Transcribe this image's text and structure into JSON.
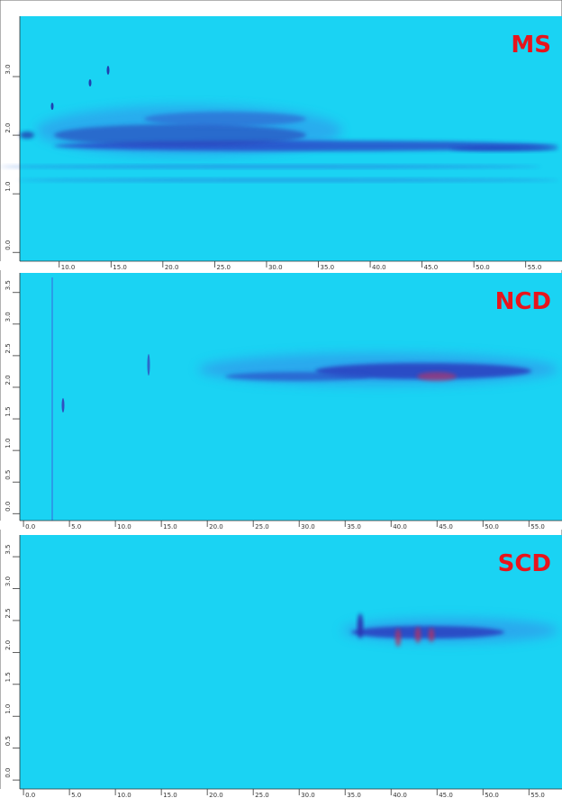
{
  "chart_data": [
    {
      "type": "heatmap",
      "title": "MS",
      "xlim": [
        6.2,
        58.5
      ],
      "xticks": [
        {
          "value": 10,
          "label": "10.0"
        },
        {
          "value": 15,
          "label": "15.0"
        },
        {
          "value": 20,
          "label": "20.0"
        },
        {
          "value": 25,
          "label": "25.0"
        },
        {
          "value": 30,
          "label": "30.0"
        },
        {
          "value": 35,
          "label": "35.0"
        },
        {
          "value": 40,
          "label": "40.0"
        },
        {
          "value": 45,
          "label": "45.0"
        },
        {
          "value": 50,
          "label": "50.0"
        },
        {
          "value": 55,
          "label": "55.0"
        }
      ],
      "ylim": [
        -0.15,
        4.03
      ],
      "yticks": [
        {
          "value": 0,
          "label": "0.0"
        },
        {
          "value": 1,
          "label": "1.0"
        },
        {
          "value": 2,
          "label": "2.0"
        },
        {
          "value": 3,
          "label": "3.0"
        }
      ]
    },
    {
      "type": "heatmap",
      "title": "NCD",
      "xlim": [
        -0.4,
        58.6
      ],
      "xticks": [
        {
          "value": 0,
          "label": "0.0"
        },
        {
          "value": 5,
          "label": "5.0"
        },
        {
          "value": 10,
          "label": "10.0"
        },
        {
          "value": 15,
          "label": "15.0"
        },
        {
          "value": 20,
          "label": "20.0"
        },
        {
          "value": 25,
          "label": "25.0"
        },
        {
          "value": 30,
          "label": "30.0"
        },
        {
          "value": 35,
          "label": "35.0"
        },
        {
          "value": 40,
          "label": "40.0"
        },
        {
          "value": 45,
          "label": "45.0"
        },
        {
          "value": 50,
          "label": "50.0"
        },
        {
          "value": 55,
          "label": "55.0"
        }
      ],
      "ylim": [
        -0.11,
        3.81
      ],
      "yticks": [
        {
          "value": 0,
          "label": "0.0"
        },
        {
          "value": 0.5,
          "label": "0.5"
        },
        {
          "value": 1,
          "label": "1.0"
        },
        {
          "value": 1.5,
          "label": "1.5"
        },
        {
          "value": 2,
          "label": "2.0"
        },
        {
          "value": 2.5,
          "label": "2.5"
        },
        {
          "value": 3,
          "label": "3.0"
        },
        {
          "value": 3.5,
          "label": "3.5"
        }
      ]
    },
    {
      "type": "heatmap",
      "title": "SCD",
      "xlim": [
        -0.4,
        58.6
      ],
      "xticks": [
        {
          "value": 0,
          "label": "0.0"
        },
        {
          "value": 5,
          "label": "5.0"
        },
        {
          "value": 10,
          "label": "10.0"
        },
        {
          "value": 15,
          "label": "15.0"
        },
        {
          "value": 20,
          "label": "20.0"
        },
        {
          "value": 25,
          "label": "25.0"
        },
        {
          "value": 30,
          "label": "30.0"
        },
        {
          "value": 35,
          "label": "35.0"
        },
        {
          "value": 40,
          "label": "40.0"
        },
        {
          "value": 45,
          "label": "45.0"
        },
        {
          "value": 50,
          "label": "50.0"
        },
        {
          "value": 55,
          "label": "55.0"
        }
      ],
      "ylim": [
        -0.14,
        3.84
      ],
      "yticks": [
        {
          "value": 0,
          "label": "0.0"
        },
        {
          "value": 0.5,
          "label": "0.5"
        },
        {
          "value": 1,
          "label": "1.0"
        },
        {
          "value": 1.5,
          "label": "1.5"
        },
        {
          "value": 2,
          "label": "2.0"
        },
        {
          "value": 2.5,
          "label": "2.5"
        },
        {
          "value": 3,
          "label": "3.0"
        },
        {
          "value": 3.5,
          "label": "3.5"
        }
      ]
    }
  ]
}
